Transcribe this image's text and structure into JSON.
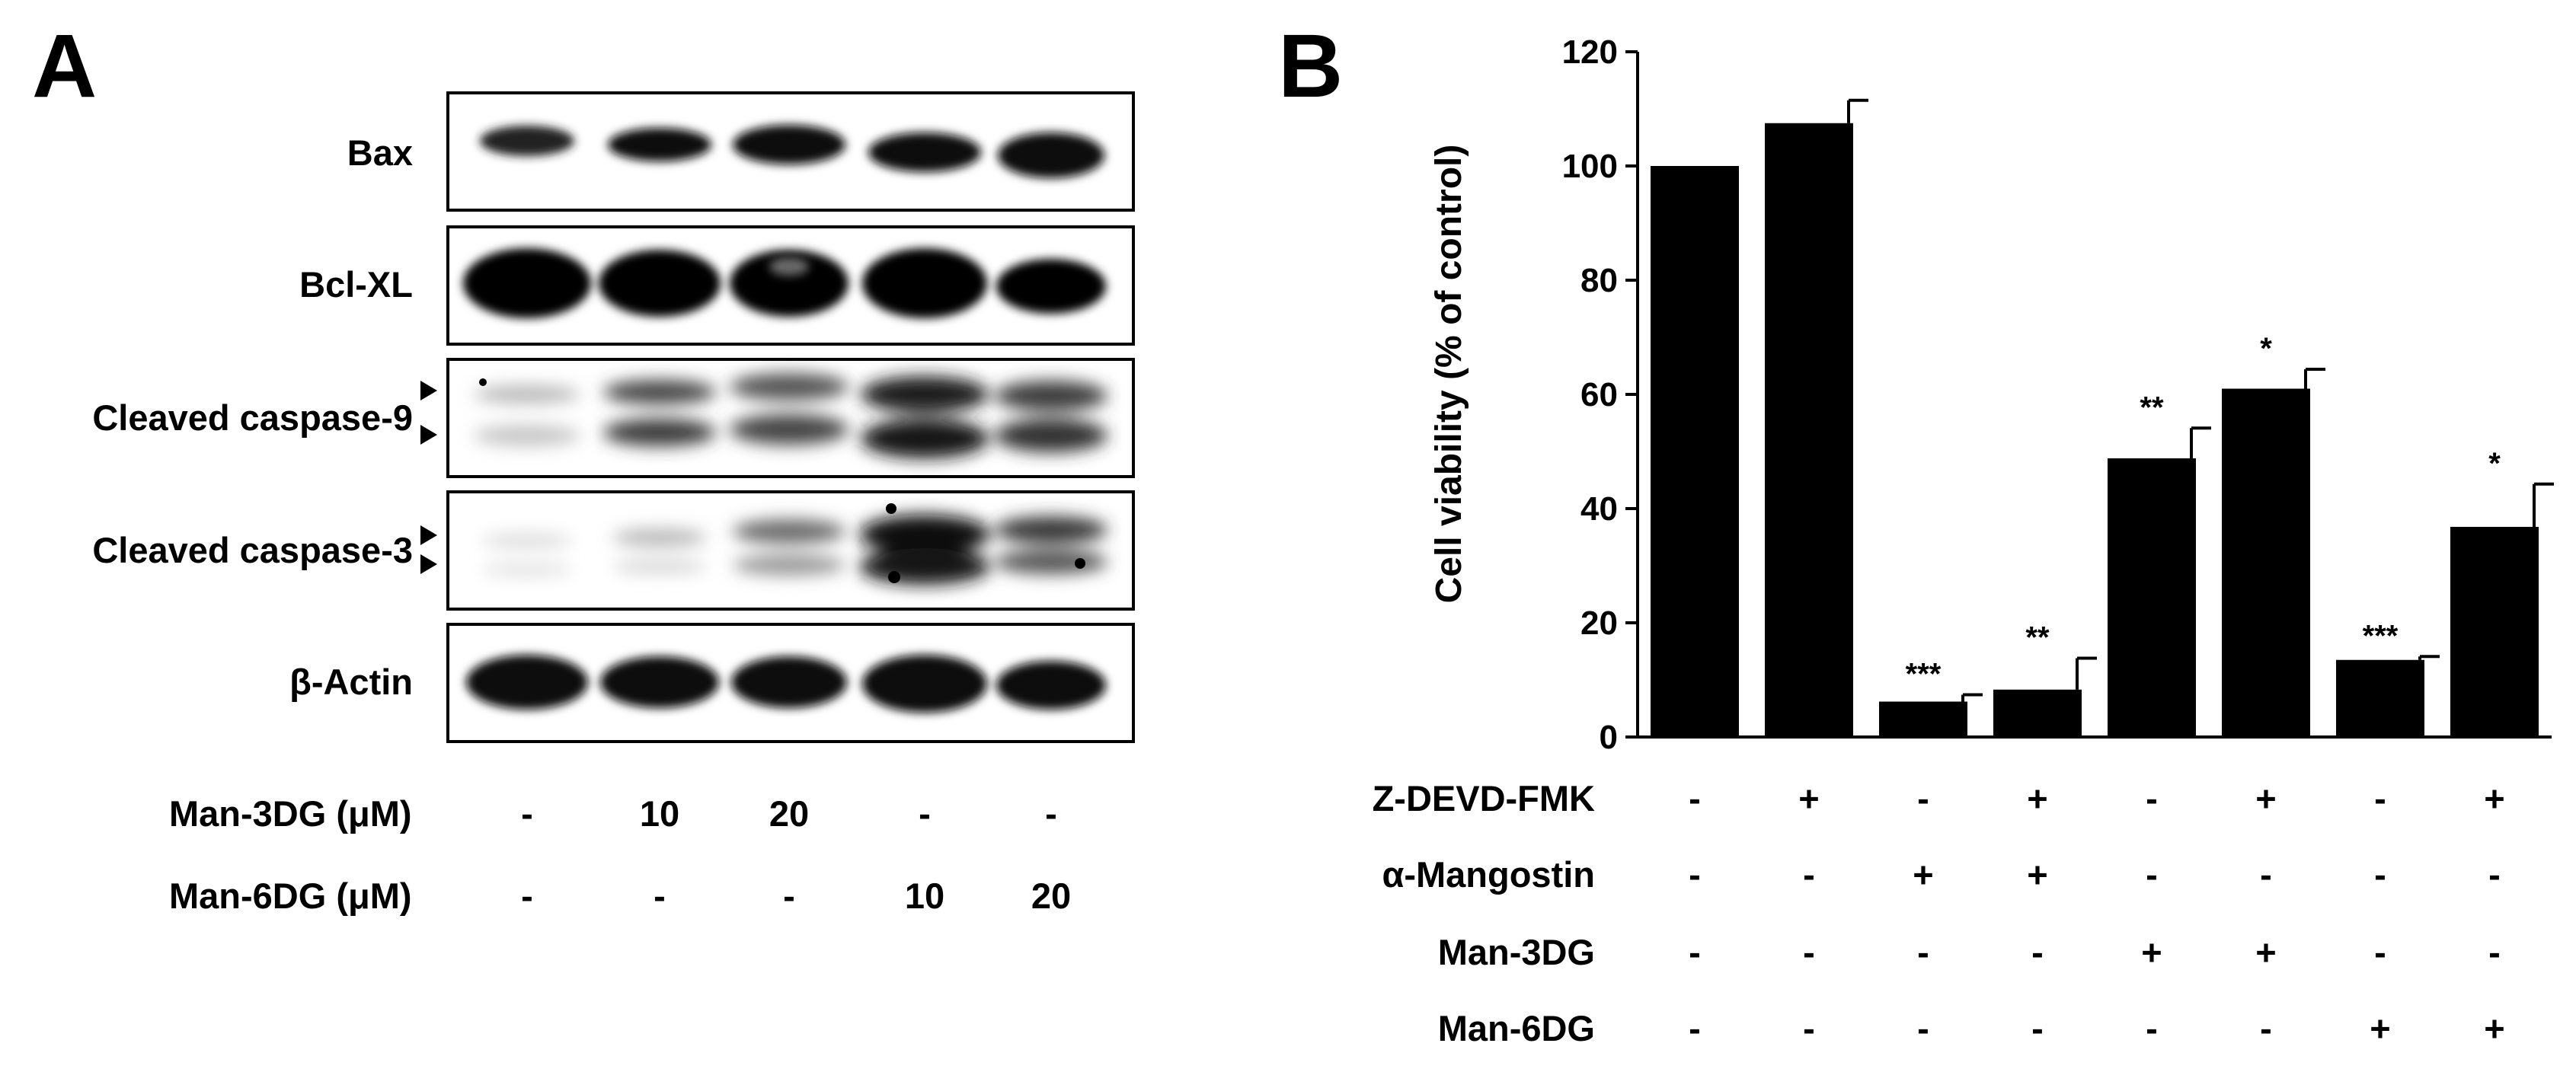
{
  "panel_a": {
    "letter": "A",
    "blots": [
      {
        "label": "Bax"
      },
      {
        "label": "Bcl-XL"
      },
      {
        "label": "Cleaved caspase-9"
      },
      {
        "label": "Cleaved caspase-3"
      },
      {
        "label": "β-Actin"
      }
    ],
    "conditions": [
      {
        "label": "Man-3DG (μM)",
        "values": [
          "-",
          "10",
          "20",
          "-",
          "-"
        ]
      },
      {
        "label": "Man-6DG (μM)",
        "values": [
          "-",
          "-",
          "-",
          "10",
          "20"
        ]
      }
    ]
  },
  "panel_b": {
    "letter": "B",
    "conditions": [
      {
        "label": "Z-DEVD-FMK",
        "values": [
          "-",
          "+",
          "-",
          "+",
          "-",
          "+",
          "-",
          "+"
        ]
      },
      {
        "label": "α-Mangostin",
        "values": [
          "-",
          "-",
          "+",
          "+",
          "-",
          "-",
          "-",
          "-"
        ]
      },
      {
        "label": "Man-3DG",
        "values": [
          "-",
          "-",
          "-",
          "-",
          "+",
          "+",
          "-",
          "-"
        ]
      },
      {
        "label": "Man-6DG",
        "values": [
          "-",
          "-",
          "-",
          "-",
          "-",
          "-",
          "+",
          "+"
        ]
      }
    ]
  },
  "chart_data": {
    "type": "bar",
    "title": "",
    "xlabel": "",
    "ylabel": "Cell viability (% of control)",
    "ylim": [
      0,
      120
    ],
    "yticks": [
      0,
      20,
      40,
      60,
      80,
      100,
      120
    ],
    "grid": false,
    "bar_color": "#000000",
    "values": [
      100,
      107.5,
      6.2,
      8.3,
      48.8,
      61.0,
      13.5,
      36.8
    ],
    "errors": [
      0,
      4.0,
      1.2,
      5.5,
      5.3,
      3.4,
      0.6,
      7.5
    ],
    "significance": [
      "",
      "",
      "***",
      "**",
      "**",
      "*",
      "***",
      "*"
    ]
  }
}
